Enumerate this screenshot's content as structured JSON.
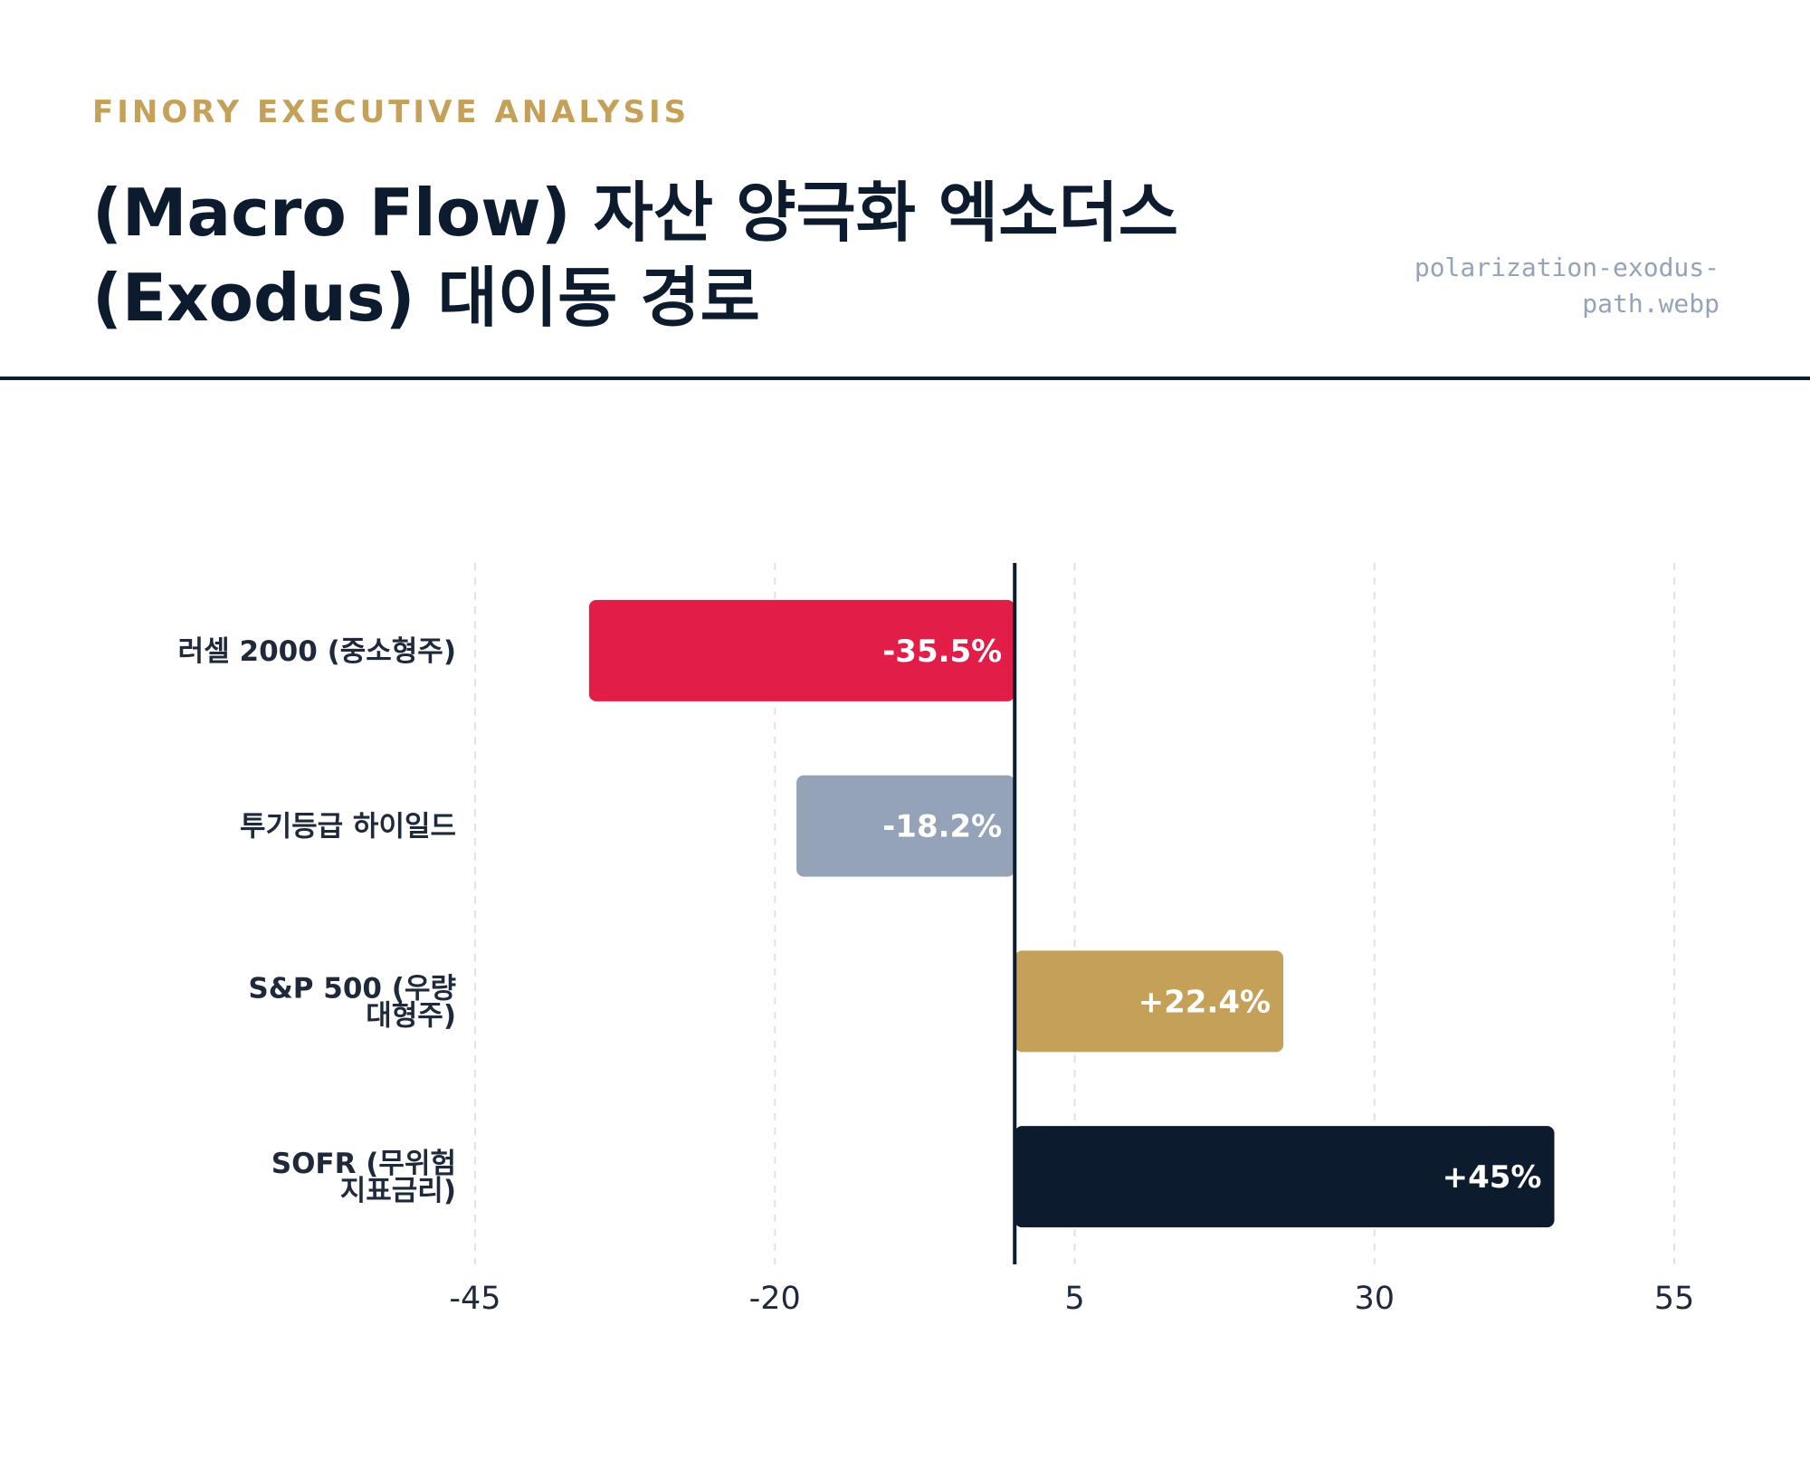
{
  "header": {
    "eyebrow": "FINORY EXECUTIVE ANALYSIS",
    "title": "(Macro Flow) 자산 양극화 엑소더스 (Exodus) 대이동 경로",
    "filename": "polarization-exodus-path.webp"
  },
  "chart_data": {
    "type": "bar",
    "orientation": "horizontal",
    "categories": [
      "러셀 2000 (중소형주)",
      "투기등급 하이일드",
      "S&P 500 (우량 대형주)",
      "SOFR (무위험 지표금리)"
    ],
    "category_lines": [
      [
        "러셀 2000 (중소형주)"
      ],
      [
        "투기등급 하이일드"
      ],
      [
        "S&P 500 (우량",
        "대형주)"
      ],
      [
        "SOFR (무위험",
        "지표금리)"
      ]
    ],
    "values": [
      -35.5,
      -18.2,
      22.4,
      45
    ],
    "value_labels": [
      "-35.5%",
      "-18.2%",
      "+22.4%",
      "+45%"
    ],
    "colors": [
      "#e11d48",
      "#94a3b8",
      "#c5a059",
      "#0d1b2e"
    ],
    "xticks": [
      "-45",
      "-20",
      "5",
      "30",
      "55"
    ],
    "xlim": [
      -45,
      55
    ],
    "grid": true,
    "zero_line": true,
    "title": "",
    "xlabel": "",
    "ylabel": ""
  }
}
